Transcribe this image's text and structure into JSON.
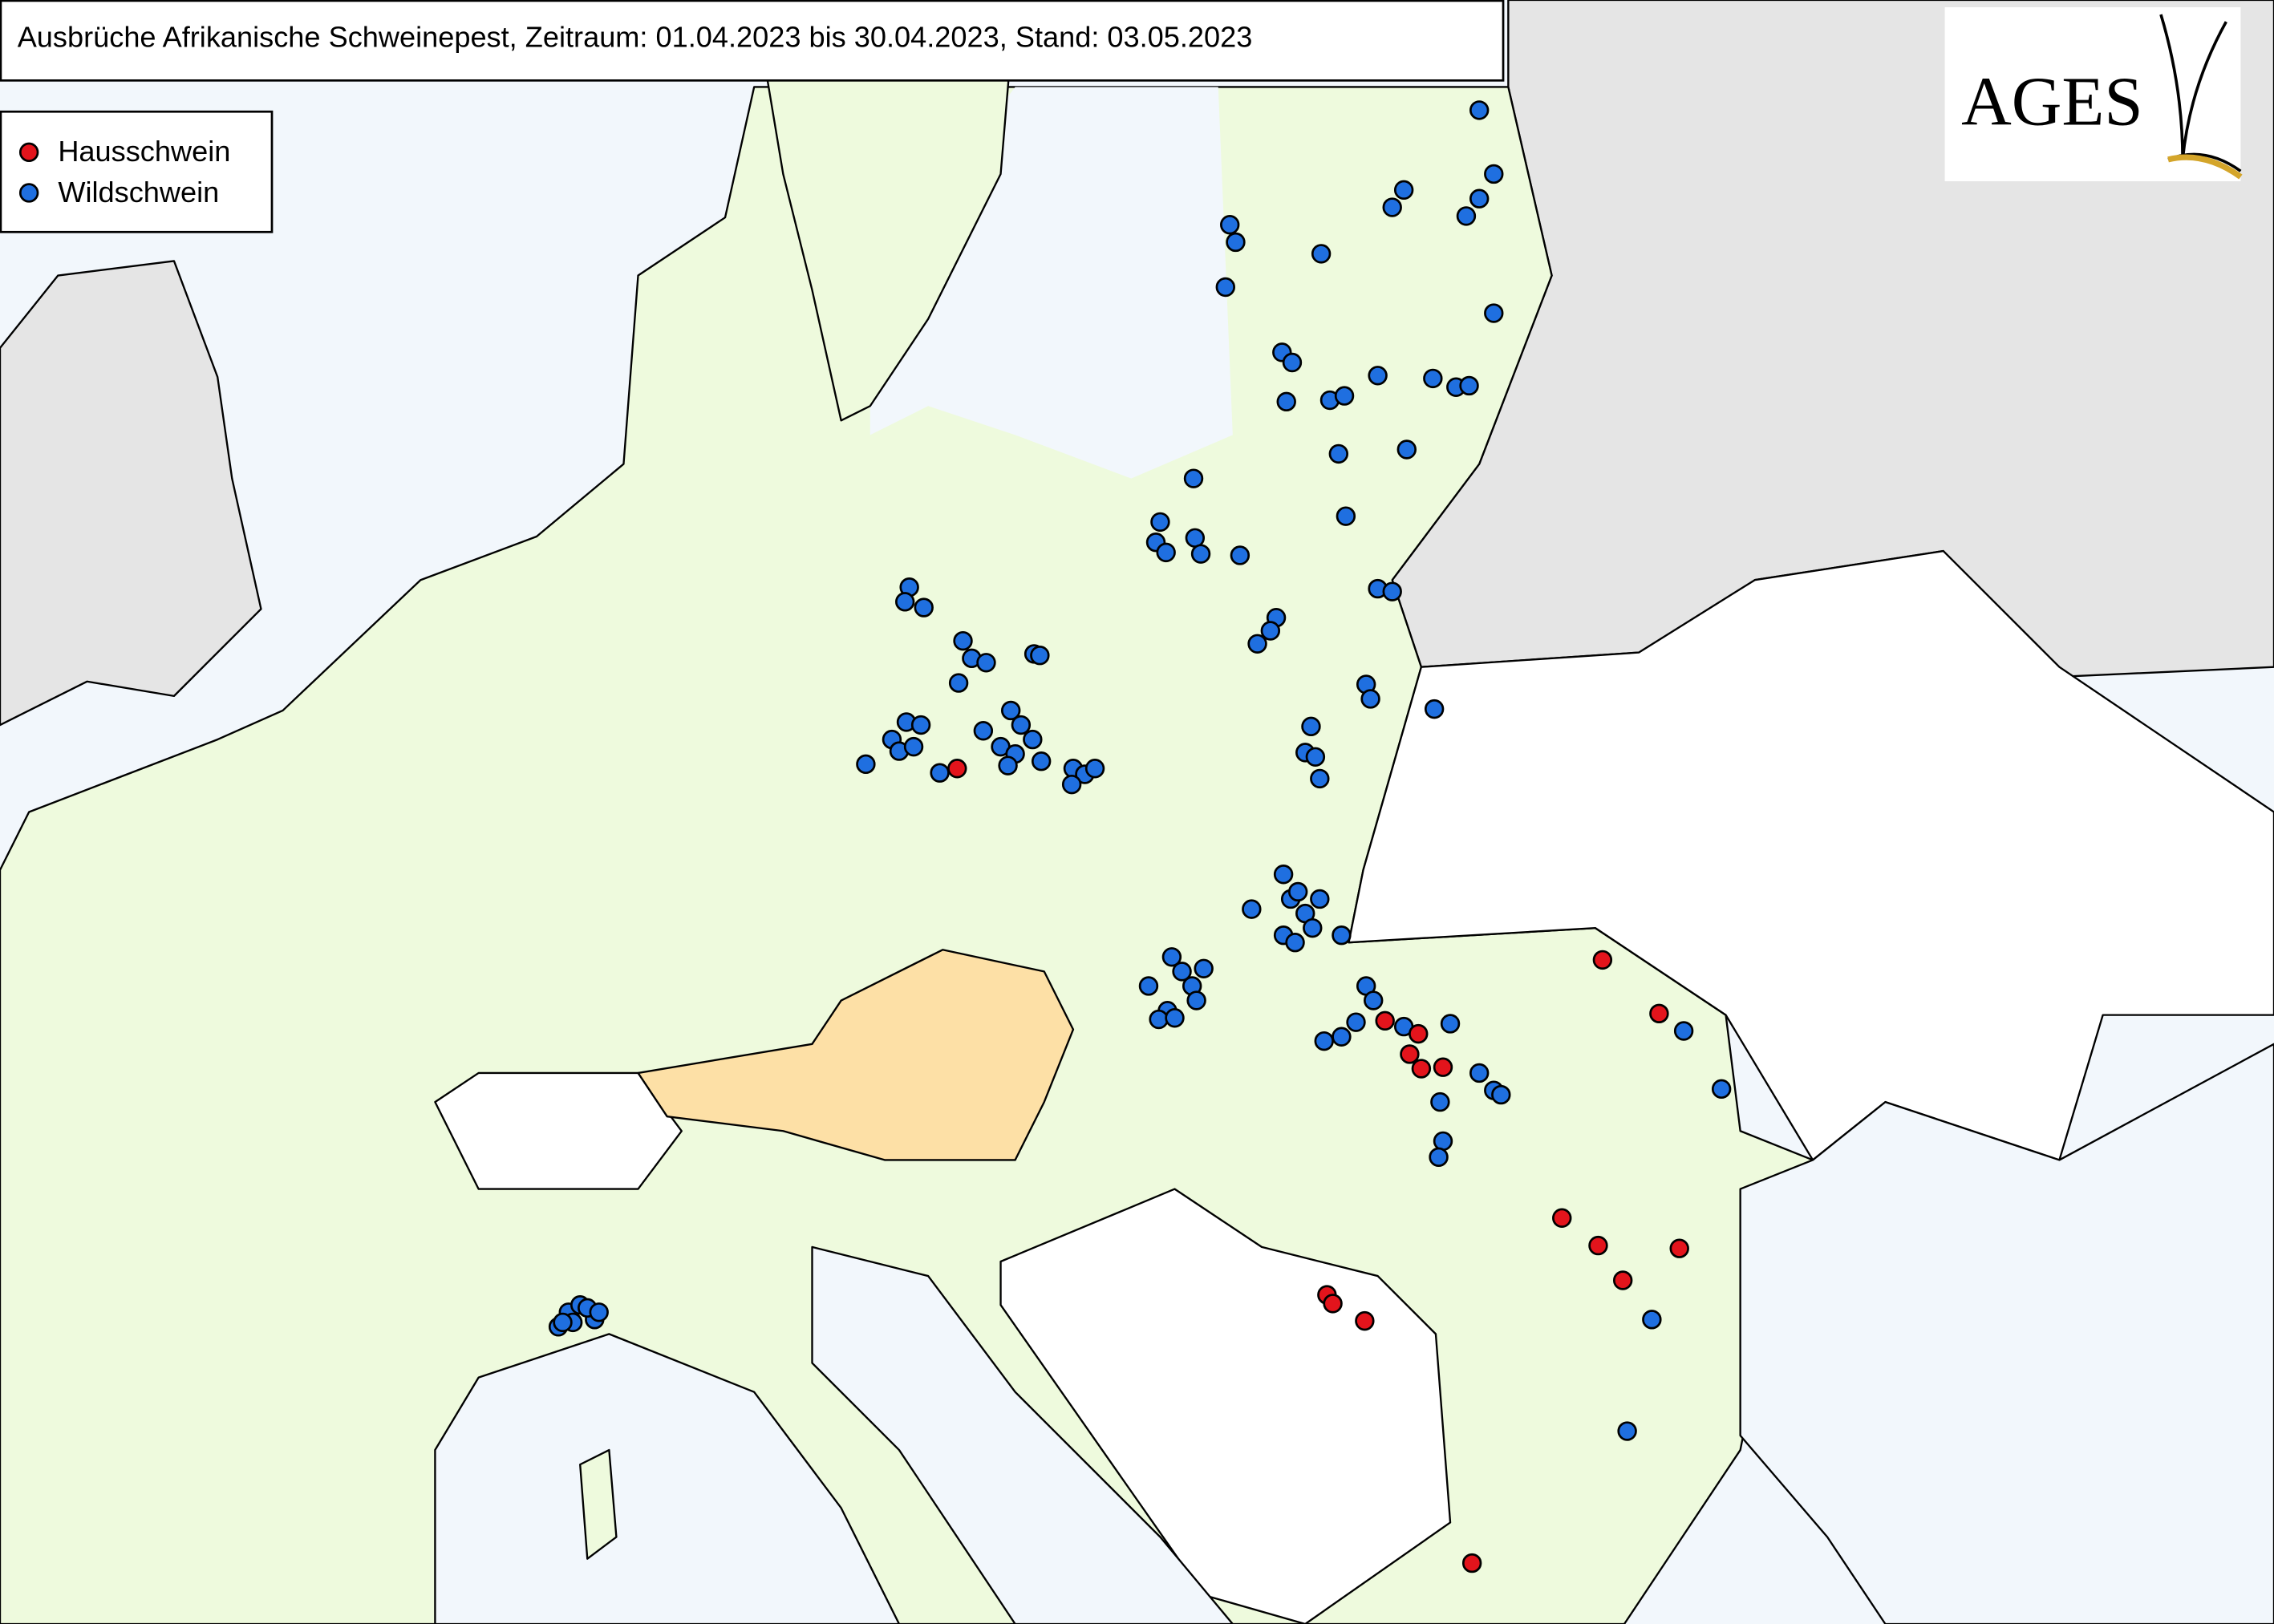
{
  "header": {
    "title": "Ausbrüche Afrikanische Schweinepest, Zeitraum: 01.04.2023 bis 30.04.2023, Stand: 03.05.2023"
  },
  "legend": [
    {
      "label": "Hausschwein",
      "color": "#e3141c"
    },
    {
      "label": "Wildschwein",
      "color": "#1f6fe0"
    }
  ],
  "logo": {
    "text": "AGES"
  }
}
